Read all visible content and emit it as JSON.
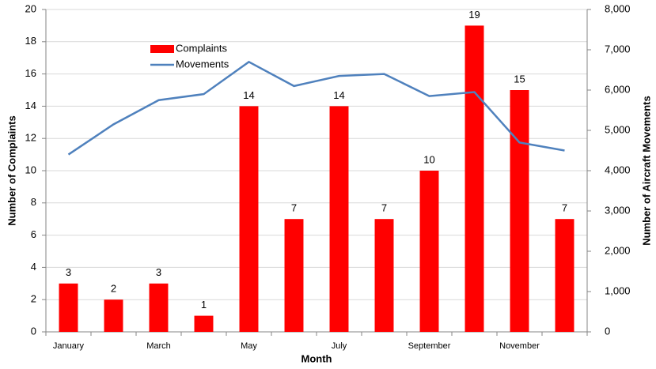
{
  "chart_data": {
    "type": "bar",
    "xlabel": "Month",
    "ylabel": "Number of Complaints",
    "y2label": "Number of Aircraft Movements",
    "categories": [
      "January",
      null,
      "March",
      null,
      "May",
      null,
      "July",
      null,
      "September",
      null,
      "November",
      null
    ],
    "series": [
      {
        "name": "Complaints",
        "type": "bar",
        "color": "#ff0000",
        "values": [
          3,
          2,
          3,
          1,
          14,
          7,
          14,
          7,
          10,
          19,
          15,
          7
        ]
      },
      {
        "name": "Movements",
        "type": "line",
        "axis": "y2",
        "color": "#4f81bd",
        "values": [
          4400,
          5150,
          5750,
          5900,
          6700,
          6100,
          6350,
          6400,
          5850,
          5950,
          4700,
          4500
        ]
      }
    ],
    "ylim": [
      0,
      20
    ],
    "yticks": [
      0,
      2,
      4,
      6,
      8,
      10,
      12,
      14,
      16,
      18,
      20
    ],
    "y2lim": [
      0,
      8000
    ],
    "y2ticks": [
      0,
      {
        "value": 1000,
        "label": "1,000"
      },
      {
        "value": 2000,
        "label": "2,000"
      },
      {
        "value": 3000,
        "label": "3,000"
      },
      {
        "value": 4000,
        "label": "4,000"
      },
      {
        "value": 5000,
        "label": "5,000"
      },
      {
        "value": 6000,
        "label": "6,000"
      },
      {
        "value": 7000,
        "label": "7,000"
      },
      {
        "value": 8000,
        "label": "8,000"
      }
    ],
    "grid": true,
    "legend": "upper left"
  }
}
